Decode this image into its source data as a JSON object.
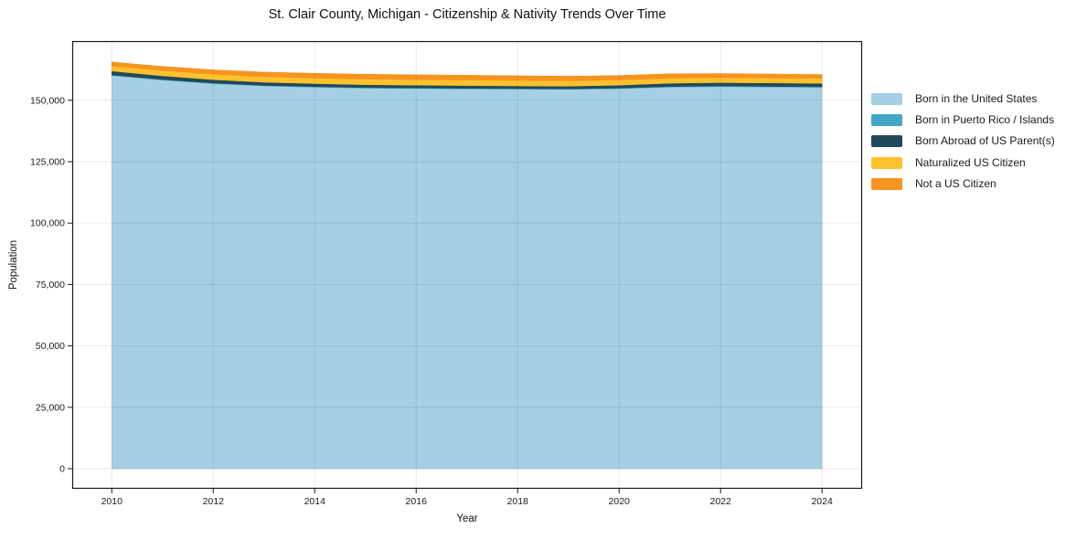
{
  "chart": {
    "title": "St. Clair County, Michigan - Citizenship & Nativity Trends Over Time",
    "xlabel": "Year",
    "ylabel": "Population"
  },
  "chart_data": {
    "type": "area",
    "stacked": true,
    "title": "St. Clair County, Michigan - Citizenship & Nativity Trends Over Time",
    "xlabel": "Year",
    "ylabel": "Population",
    "grid": true,
    "legend_position": "right-outside",
    "xlim": [
      2009.22,
      2024.79
    ],
    "ylim": [
      -8184,
      174096
    ],
    "x": [
      2010,
      2011,
      2012,
      2013,
      2014,
      2015,
      2016,
      2017,
      2018,
      2019,
      2020,
      2021,
      2022,
      2023,
      2024
    ],
    "series": [
      {
        "name": "Born in the United States",
        "color": "#a4cfe5",
        "values": [
          160050,
          158210,
          156770,
          155830,
          155340,
          154950,
          154800,
          154650,
          154550,
          154450,
          154730,
          155350,
          155540,
          155400,
          155250
        ]
      },
      {
        "name": "Born in Puerto Rico / Islands",
        "color": "#45a7c6",
        "values": [
          250,
          240,
          230,
          220,
          210,
          200,
          200,
          200,
          200,
          200,
          220,
          250,
          260,
          250,
          250
        ]
      },
      {
        "name": "Born Abroad of US Parent(s)",
        "color": "#20495c",
        "values": [
          1600,
          1500,
          1400,
          1300,
          1250,
          1200,
          1150,
          1150,
          1100,
          1100,
          1200,
          1350,
          1400,
          1400,
          1400
        ]
      },
      {
        "name": "Naturalized US Citizen",
        "color": "#fdc22e",
        "values": [
          2100,
          2150,
          2200,
          2250,
          2250,
          2250,
          2250,
          2200,
          2200,
          2150,
          2100,
          2050,
          2000,
          2000,
          2000
        ]
      },
      {
        "name": "Not a US Citizen",
        "color": "#f79320",
        "values": [
          1600,
          1700,
          1800,
          1900,
          1950,
          2000,
          2000,
          2000,
          1950,
          1900,
          1850,
          1800,
          1700,
          1650,
          1600
        ]
      }
    ],
    "x_ticks": [
      {
        "value": 2010,
        "label": "2010"
      },
      {
        "value": 2012,
        "label": "2012"
      },
      {
        "value": 2014,
        "label": "2014"
      },
      {
        "value": 2016,
        "label": "2016"
      },
      {
        "value": 2018,
        "label": "2018"
      },
      {
        "value": 2020,
        "label": "2020"
      },
      {
        "value": 2022,
        "label": "2022"
      },
      {
        "value": 2024,
        "label": "2024"
      }
    ],
    "y_ticks": [
      {
        "value": 0,
        "label": "0"
      },
      {
        "value": 25000,
        "label": "25,000"
      },
      {
        "value": 50000,
        "label": "50,000"
      },
      {
        "value": 75000,
        "label": "75,000"
      },
      {
        "value": 100000,
        "label": "100,000"
      },
      {
        "value": 125000,
        "label": "125,000"
      },
      {
        "value": 150000,
        "label": "150,000"
      }
    ]
  }
}
